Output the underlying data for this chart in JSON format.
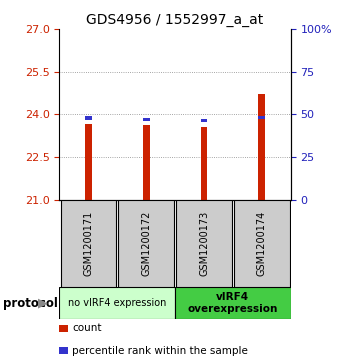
{
  "title": "GDS4956 / 1552997_a_at",
  "samples": [
    "GSM1200171",
    "GSM1200172",
    "GSM1200173",
    "GSM1200174"
  ],
  "red_values": [
    23.65,
    23.62,
    23.55,
    24.7
  ],
  "blue_values": [
    23.8,
    23.75,
    23.72,
    23.82
  ],
  "blue_bar_height": 0.13,
  "ylim_left": [
    21,
    27
  ],
  "yticks_left": [
    21,
    22.5,
    24,
    25.5,
    27
  ],
  "ylim_right": [
    0,
    100
  ],
  "yticks_right": [
    0,
    25,
    50,
    75,
    100
  ],
  "ytick_labels_right": [
    "0",
    "25",
    "50",
    "75",
    "100%"
  ],
  "bar_width": 0.12,
  "red_color": "#cc2200",
  "blue_color": "#3333cc",
  "groups": [
    {
      "label": "no vIRF4 expression",
      "indices": [
        0,
        1
      ],
      "color": "#ccffcc"
    },
    {
      "label": "vIRF4\noverexpression",
      "indices": [
        2,
        3
      ],
      "color": "#44cc44"
    }
  ],
  "protocol_label": "protocol",
  "legend_items": [
    {
      "color": "#cc2200",
      "label": "count"
    },
    {
      "color": "#3333cc",
      "label": "percentile rank within the sample"
    }
  ],
  "left_axis_color": "#cc2200",
  "right_axis_color": "#2222bb",
  "grid_color": "#888888",
  "background_color": "#ffffff",
  "box_bg_color": "#cccccc"
}
